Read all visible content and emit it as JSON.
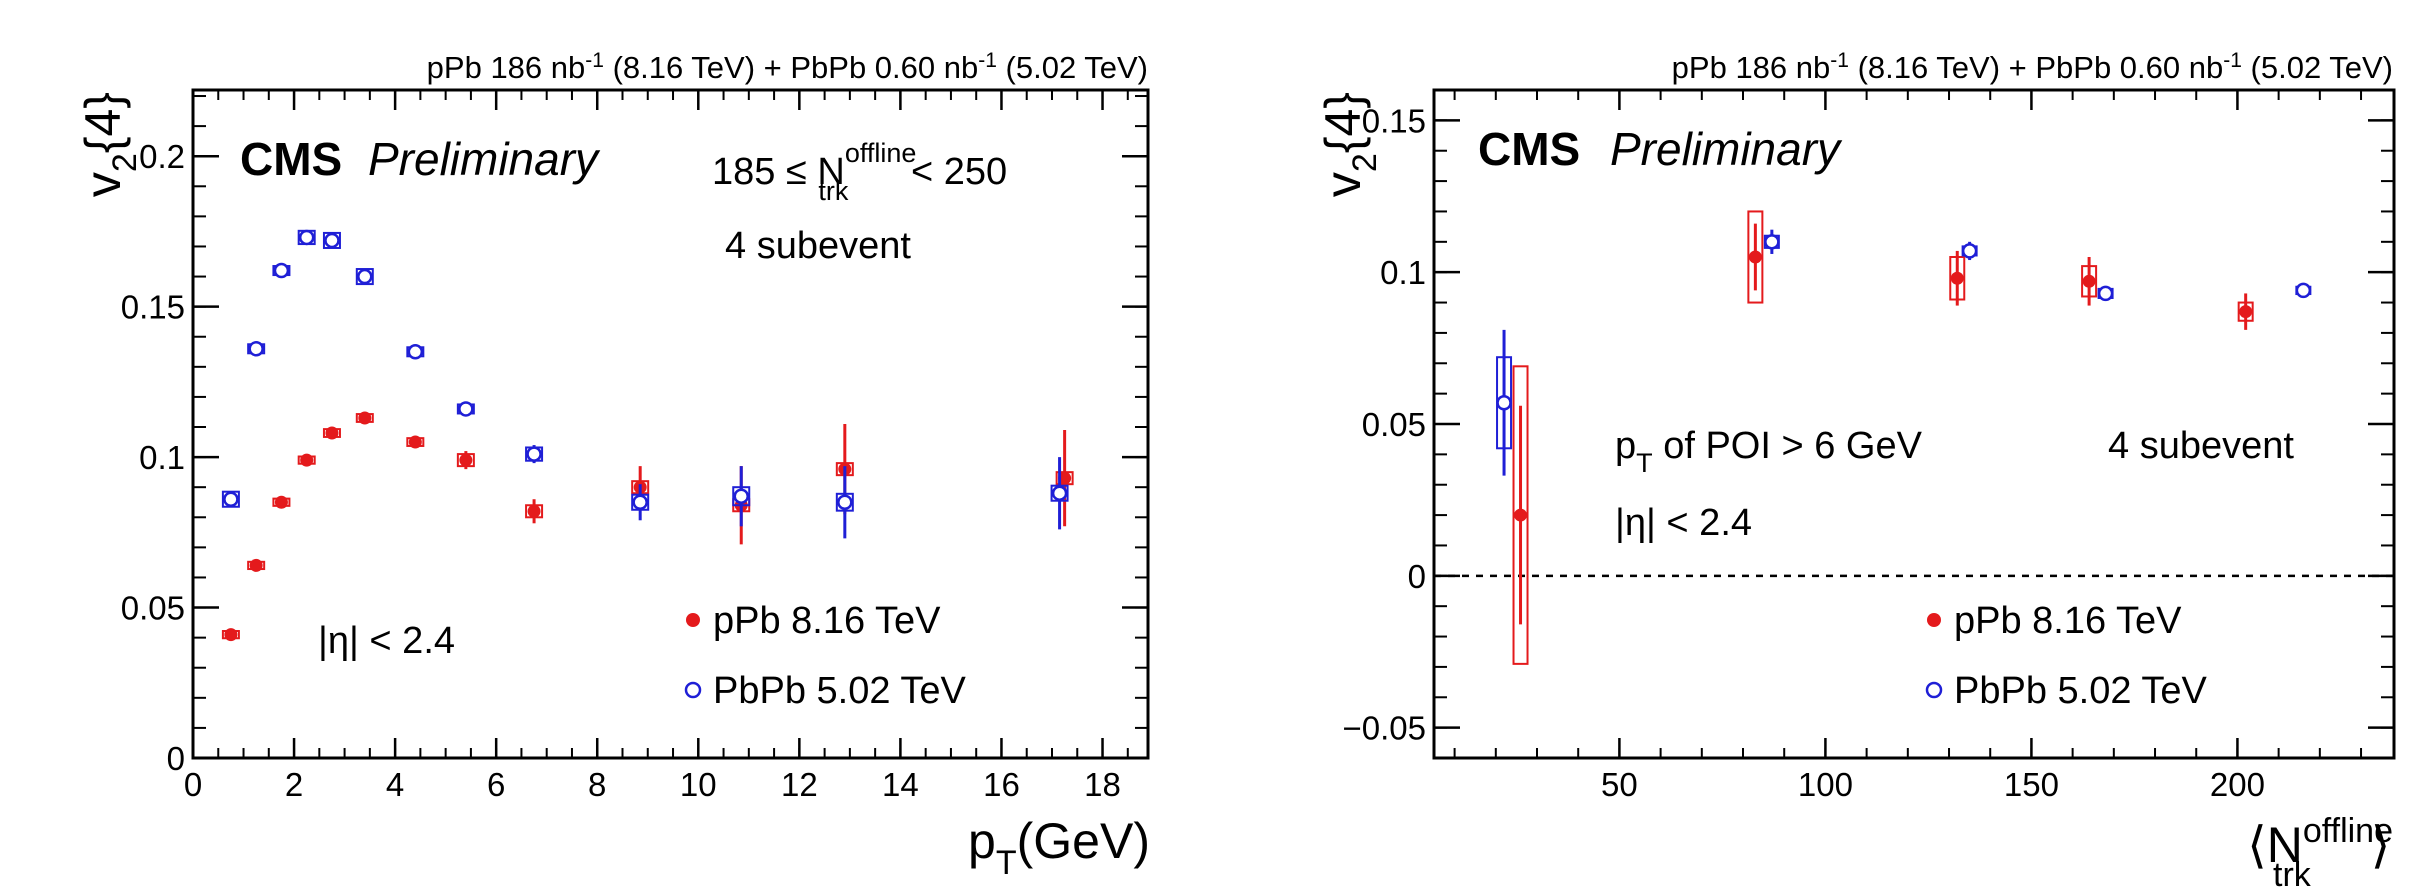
{
  "colors": {
    "pPb": "#e41a1c",
    "PbPb": "#1f1fd6",
    "frame": "#000000",
    "zero_line": "#000000"
  },
  "chart_data": [
    {
      "type": "scatter",
      "header": "pPb 186 nb⁻¹ (8.16 TeV) + PbPb 0.60 nb⁻¹ (5.02 TeV)",
      "header_parts": {
        "a": "pPb 186 nb",
        "a_sup": "-1",
        "b": " (8.16 TeV) + PbPb 0.60 nb",
        "b_sup": "-1",
        "c": " (5.02 TeV)"
      },
      "cms": "CMS",
      "preliminary": "Preliminary",
      "selection": {
        "main": "185 ≤ N",
        "sup": "offline",
        "sub": "trk",
        "tail": " < 250"
      },
      "subevent": "4 subevent",
      "eta_cut": "|η| < 2.4",
      "xlabel": {
        "main": "p",
        "sub": "T",
        "tail": "(GeV)"
      },
      "ylabel": {
        "main": "v",
        "sub": "2",
        "tail": "{4}"
      },
      "xlim": [
        0,
        18.9
      ],
      "ylim": [
        0,
        0.222
      ],
      "xticks": [
        0,
        2,
        4,
        6,
        8,
        10,
        12,
        14,
        16,
        18
      ],
      "xtick_labels": [
        "0",
        "2",
        "4",
        "6",
        "8",
        "10",
        "12",
        "14",
        "16",
        "18"
      ],
      "yticks": [
        0,
        0.05,
        0.1,
        0.15,
        0.2
      ],
      "ytick_labels": [
        "0",
        "0.05",
        "0.1",
        "0.15",
        "0.2"
      ],
      "legend_position": "lower-right",
      "series": [
        {
          "name": "pPb 8.16 TeV",
          "marker": "filled-circle",
          "points": [
            {
              "x": 0.75,
              "y": 0.041,
              "stat": 0.001,
              "sys": 0.0012
            },
            {
              "x": 1.25,
              "y": 0.064,
              "stat": 0.001,
              "sys": 0.0012
            },
            {
              "x": 1.75,
              "y": 0.085,
              "stat": 0.001,
              "sys": 0.0012
            },
            {
              "x": 2.25,
              "y": 0.099,
              "stat": 0.001,
              "sys": 0.0012
            },
            {
              "x": 2.75,
              "y": 0.108,
              "stat": 0.001,
              "sys": 0.0013
            },
            {
              "x": 3.4,
              "y": 0.113,
              "stat": 0.001,
              "sys": 0.0013
            },
            {
              "x": 4.4,
              "y": 0.105,
              "stat": 0.0015,
              "sys": 0.0013
            },
            {
              "x": 5.4,
              "y": 0.099,
              "stat": 0.003,
              "sys": 0.002
            },
            {
              "x": 6.75,
              "y": 0.082,
              "stat": 0.004,
              "sys": 0.002
            },
            {
              "x": 8.85,
              "y": 0.09,
              "stat": 0.007,
              "sys": 0.002
            },
            {
              "x": 10.85,
              "y": 0.084,
              "stat": 0.013,
              "sys": 0.002
            },
            {
              "x": 12.9,
              "y": 0.096,
              "stat": 0.015,
              "sys": 0.002
            },
            {
              "x": 17.25,
              "y": 0.093,
              "stat": 0.016,
              "sys": 0.002
            }
          ]
        },
        {
          "name": "PbPb 5.02 TeV",
          "marker": "open-circle",
          "points": [
            {
              "x": 0.75,
              "y": 0.086,
              "stat": 0.001,
              "sys": 0.0025
            },
            {
              "x": 1.25,
              "y": 0.136,
              "stat": 0.001,
              "sys": 0.0015
            },
            {
              "x": 1.75,
              "y": 0.162,
              "stat": 0.001,
              "sys": 0.0015
            },
            {
              "x": 2.25,
              "y": 0.173,
              "stat": 0.001,
              "sys": 0.0022
            },
            {
              "x": 2.75,
              "y": 0.172,
              "stat": 0.001,
              "sys": 0.0025
            },
            {
              "x": 3.4,
              "y": 0.16,
              "stat": 0.001,
              "sys": 0.0025
            },
            {
              "x": 4.4,
              "y": 0.135,
              "stat": 0.001,
              "sys": 0.0015
            },
            {
              "x": 5.4,
              "y": 0.116,
              "stat": 0.002,
              "sys": 0.0015
            },
            {
              "x": 6.75,
              "y": 0.101,
              "stat": 0.003,
              "sys": 0.0022
            },
            {
              "x": 8.85,
              "y": 0.085,
              "stat": 0.006,
              "sys": 0.0025
            },
            {
              "x": 10.85,
              "y": 0.087,
              "stat": 0.01,
              "sys": 0.003
            },
            {
              "x": 12.9,
              "y": 0.085,
              "stat": 0.012,
              "sys": 0.0028
            },
            {
              "x": 17.15,
              "y": 0.088,
              "stat": 0.012,
              "sys": 0.0025
            }
          ]
        }
      ]
    },
    {
      "type": "scatter",
      "header": "pPb 186 nb⁻¹ (8.16 TeV) + PbPb 0.60 nb⁻¹ (5.02 TeV)",
      "header_parts": {
        "a": "pPb 186 nb",
        "a_sup": "-1",
        "b": " (8.16 TeV) + PbPb 0.60 nb",
        "b_sup": "-1",
        "c": " (5.02 TeV)"
      },
      "cms": "CMS",
      "preliminary": "Preliminary",
      "poi_cut": {
        "main": "p",
        "sub": "T",
        "tail": " of POI > 6 GeV"
      },
      "subevent": "4 subevent",
      "eta_cut": "|η| < 2.4",
      "xlabel": {
        "left": "⟨N",
        "sup": "offline",
        "sub": "trk",
        "right": "⟩"
      },
      "ylabel": {
        "main": "v",
        "sub": "2",
        "tail": "{4}"
      },
      "xlim": [
        5,
        238
      ],
      "ylim": [
        -0.06,
        0.16
      ],
      "xticks": [
        50,
        100,
        150,
        200
      ],
      "xtick_labels": [
        "50",
        "100",
        "150",
        "200"
      ],
      "yticks": [
        -0.05,
        0,
        0.05,
        0.1,
        0.15
      ],
      "ytick_labels": [
        "−0.05",
        "0",
        "0.05",
        "0.1",
        "0.15"
      ],
      "zero_line": true,
      "legend_position": "lower-right",
      "series": [
        {
          "name": "pPb 8.16 TeV",
          "marker": "filled-circle",
          "points": [
            {
              "x": 26,
              "y": 0.02,
              "stat": 0.036,
              "sys": 0.049
            },
            {
              "x": 83,
              "y": 0.105,
              "stat": 0.011,
              "sys": 0.015
            },
            {
              "x": 132,
              "y": 0.098,
              "stat": 0.009,
              "sys": 0.007
            },
            {
              "x": 164,
              "y": 0.097,
              "stat": 0.008,
              "sys": 0.005
            },
            {
              "x": 202,
              "y": 0.087,
              "stat": 0.006,
              "sys": 0.003
            }
          ]
        },
        {
          "name": "PbPb 5.02 TeV",
          "marker": "open-circle",
          "points": [
            {
              "x": 22,
              "y": 0.057,
              "stat": 0.024,
              "sys": 0.015
            },
            {
              "x": 87,
              "y": 0.11,
              "stat": 0.004,
              "sys": 0.002
            },
            {
              "x": 135,
              "y": 0.107,
              "stat": 0.003,
              "sys": 0.0015
            },
            {
              "x": 168,
              "y": 0.093,
              "stat": 0.002,
              "sys": 0.0015
            },
            {
              "x": 216,
              "y": 0.094,
              "stat": 0.001,
              "sys": 0.0012
            }
          ]
        }
      ]
    }
  ]
}
